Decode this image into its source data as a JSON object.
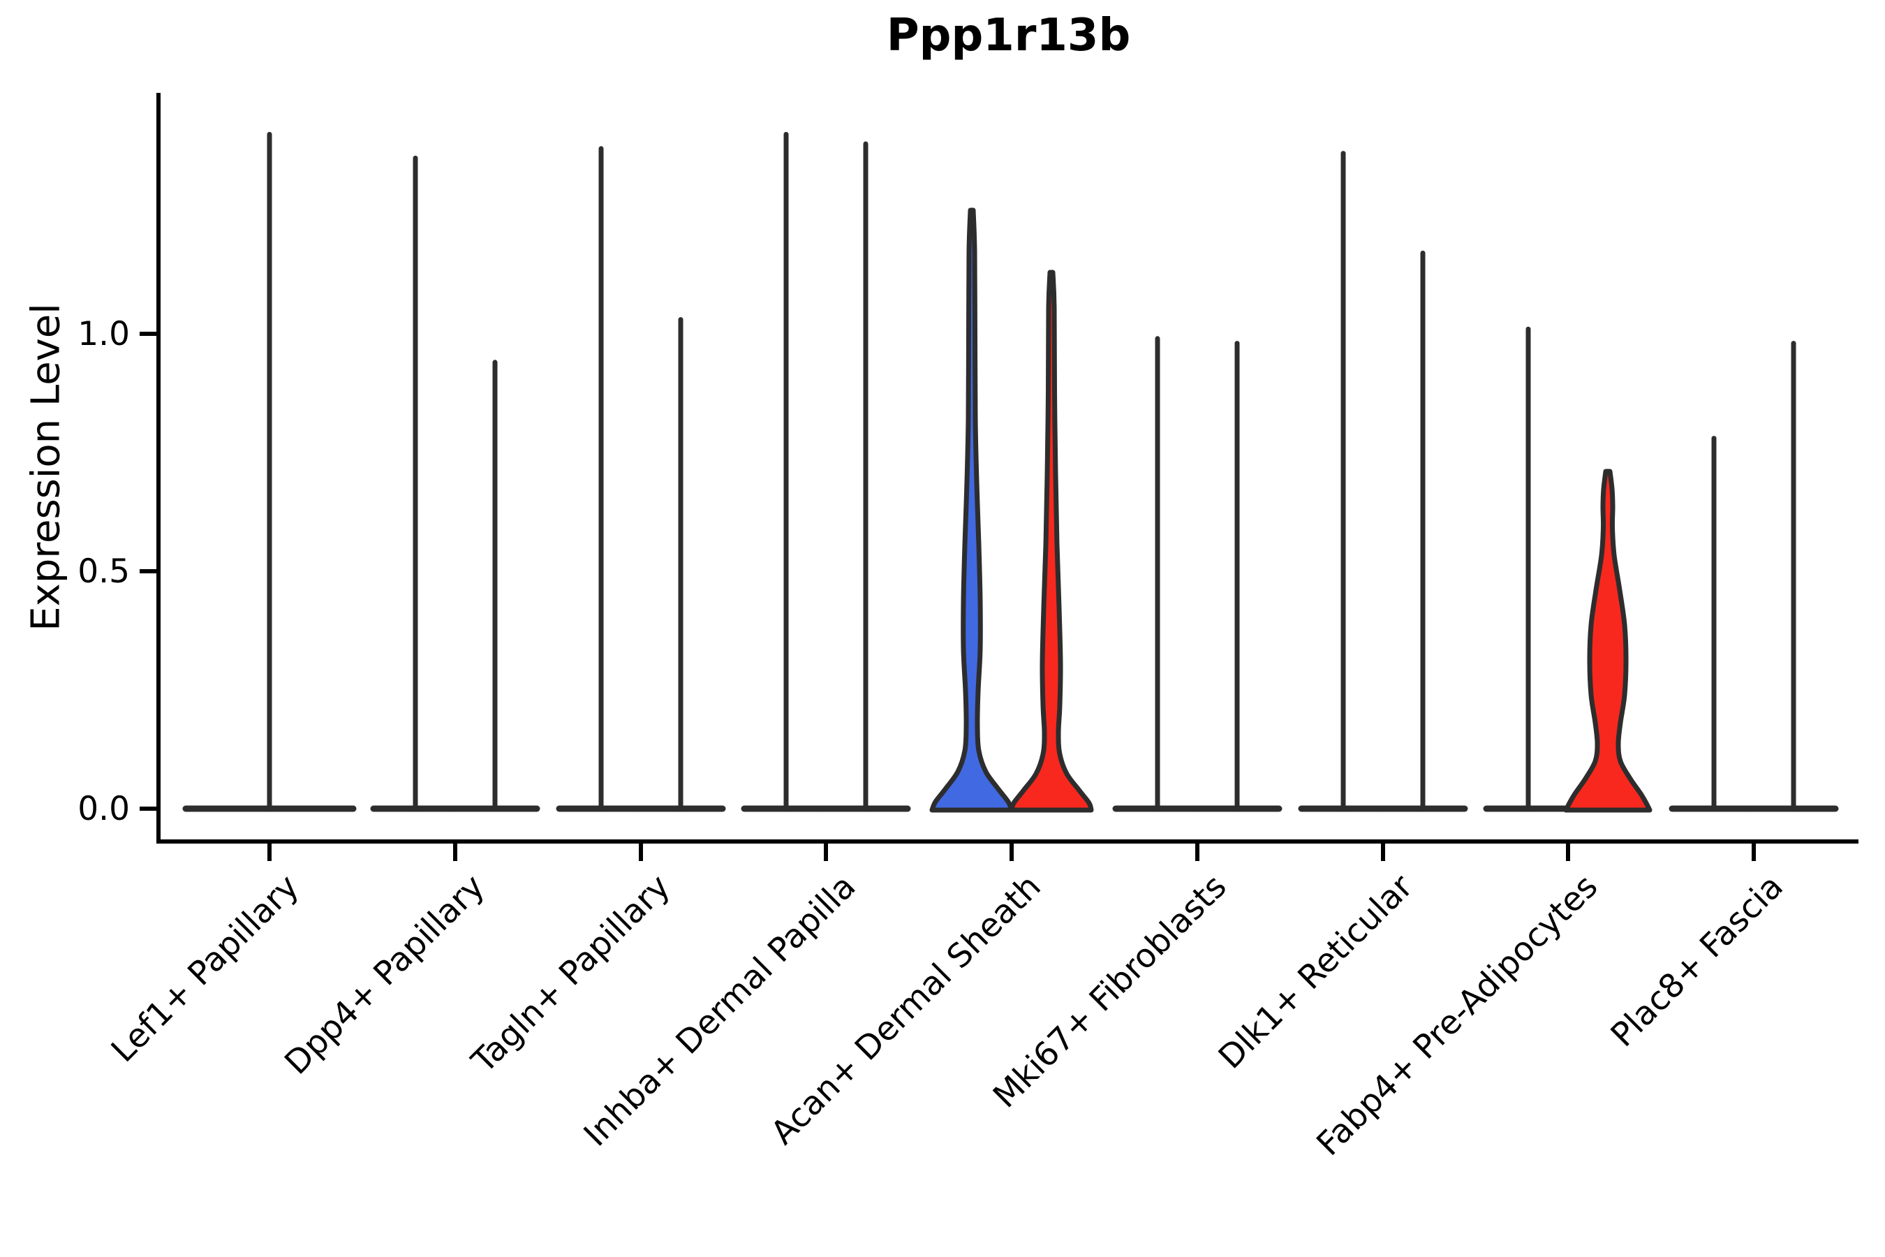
{
  "chart_data": {
    "type": "violin",
    "title": "Ppp1r13b",
    "ylabel": "Expression Level",
    "ytick_labels": [
      "0.0",
      "0.5",
      "1.0"
    ],
    "ytick_values": [
      0.0,
      0.5,
      1.0
    ],
    "ylim": [
      0,
      1.5
    ],
    "grid": false,
    "legend": "none",
    "categories": [
      "Lef1+ Papillary",
      "Dpp4+ Papillary",
      "Tagln+ Papillary",
      "Inhba+ Dermal Papilla",
      "Acan+ Dermal Sheath",
      "Mki67+ Fibroblasts",
      "Dlk1+ Reticular",
      "Fabp4+ Pre-Adipocytes",
      "Plac8+ Fascia"
    ],
    "violin_description": "Expression concentrated near 0 in all populations; thin tails reach the listed maxima",
    "violins": [
      {
        "category_index": 0,
        "category": "Lef1+ Papillary",
        "slot": "full",
        "max_expression": 1.42,
        "filled": false
      },
      {
        "category_index": 1,
        "category": "Dpp4+ Papillary",
        "slot": "left",
        "max_expression": 1.37,
        "filled": false
      },
      {
        "category_index": 1,
        "category": "Dpp4+ Papillary",
        "slot": "right",
        "max_expression": 0.94,
        "filled": false
      },
      {
        "category_index": 2,
        "category": "Tagln+ Papillary",
        "slot": "left",
        "max_expression": 1.39,
        "filled": false
      },
      {
        "category_index": 2,
        "category": "Tagln+ Papillary",
        "slot": "right",
        "max_expression": 1.03,
        "filled": false
      },
      {
        "category_index": 3,
        "category": "Inhba+ Dermal Papilla",
        "slot": "left",
        "max_expression": 1.42,
        "filled": false
      },
      {
        "category_index": 3,
        "category": "Inhba+ Dermal Papilla",
        "slot": "right",
        "max_expression": 1.4,
        "filled": false
      },
      {
        "category_index": 4,
        "category": "Acan+ Dermal Sheath",
        "slot": "left",
        "max_expression": 1.26,
        "filled": true,
        "fill_color": "#4169E1"
      },
      {
        "category_index": 4,
        "category": "Acan+ Dermal Sheath",
        "slot": "right",
        "max_expression": 1.13,
        "filled": true,
        "fill_color": "#F8281E"
      },
      {
        "category_index": 5,
        "category": "Mki67+ Fibroblasts",
        "slot": "left",
        "max_expression": 0.99,
        "filled": false
      },
      {
        "category_index": 5,
        "category": "Mki67+ Fibroblasts",
        "slot": "right",
        "max_expression": 0.98,
        "filled": false
      },
      {
        "category_index": 6,
        "category": "Dlk1+ Reticular",
        "slot": "left",
        "max_expression": 1.38,
        "filled": false
      },
      {
        "category_index": 6,
        "category": "Dlk1+ Reticular",
        "slot": "right",
        "max_expression": 1.17,
        "filled": false
      },
      {
        "category_index": 7,
        "category": "Fabp4+ Pre-Adipocytes",
        "slot": "left",
        "max_expression": 1.01,
        "filled": false
      },
      {
        "category_index": 7,
        "category": "Fabp4+ Pre-Adipocytes",
        "slot": "right",
        "max_expression": 0.71,
        "filled": true,
        "fill_color": "#F8281E"
      },
      {
        "category_index": 8,
        "category": "Plac8+ Fascia",
        "slot": "left",
        "max_expression": 0.78,
        "filled": false
      },
      {
        "category_index": 8,
        "category": "Plac8+ Fascia",
        "slot": "right",
        "max_expression": 0.98,
        "filled": false
      }
    ],
    "colors": {
      "blue_fill": "#4169E1",
      "red_fill": "#F8281E",
      "violin_outline": "#2d2d2d",
      "axis": "#000000",
      "background": "#ffffff"
    }
  }
}
